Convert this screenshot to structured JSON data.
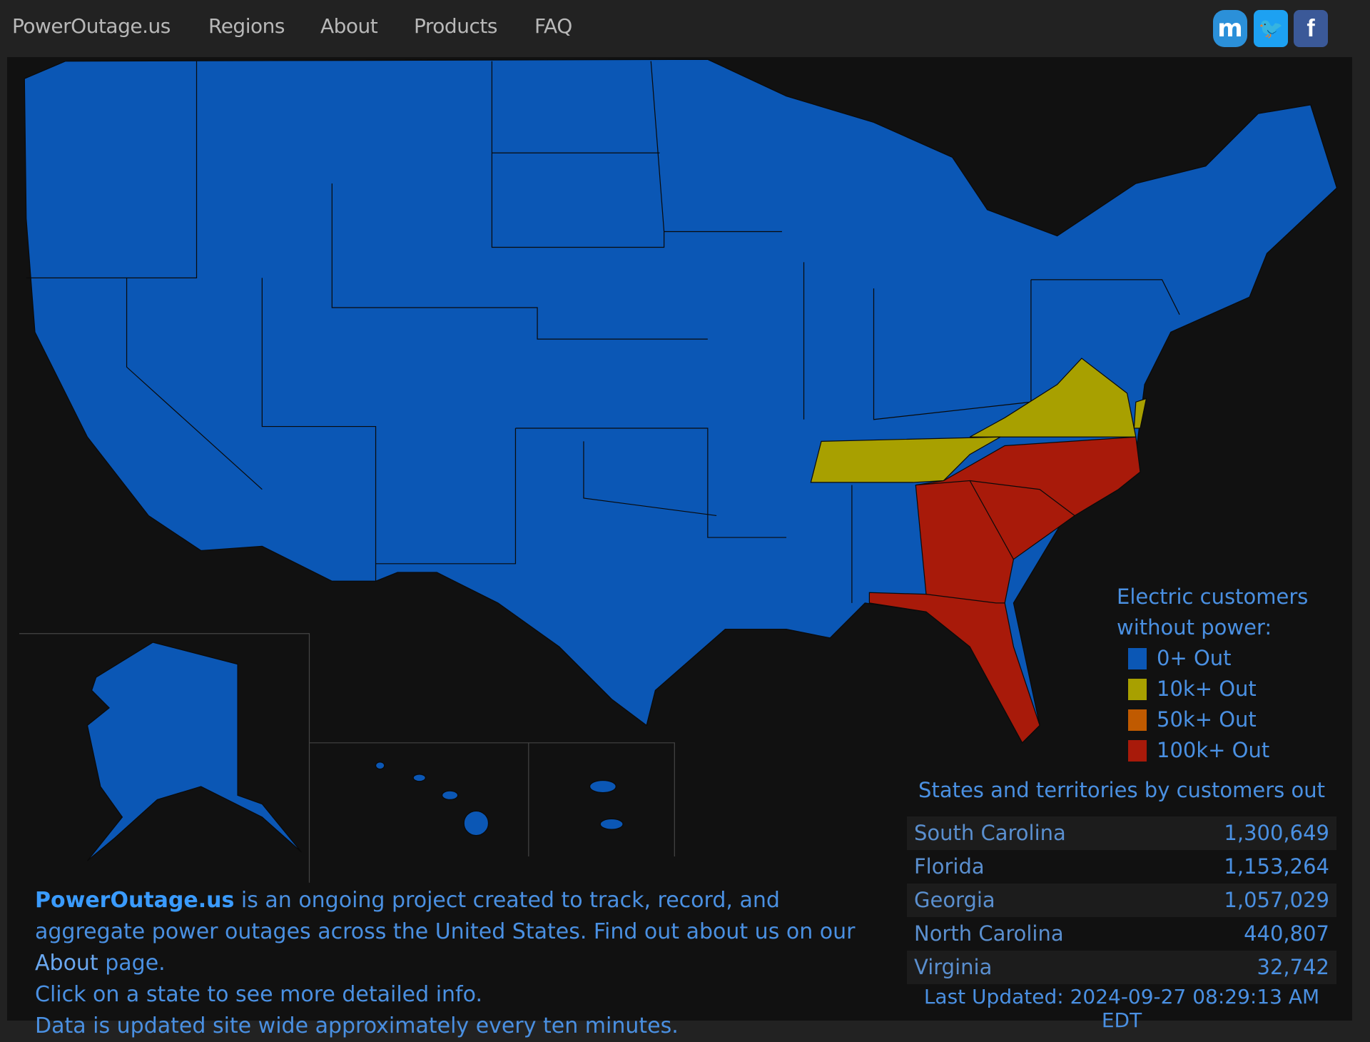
{
  "nav": {
    "items": [
      {
        "label": "PowerOutage.us"
      },
      {
        "label": "Regions"
      },
      {
        "label": "About"
      },
      {
        "label": "Products"
      },
      {
        "label": "FAQ"
      }
    ],
    "social": [
      {
        "icon": "mastodon-icon",
        "glyph": "m",
        "color": "#2b90d9"
      },
      {
        "icon": "twitter-icon",
        "glyph": "🐦",
        "color": "#1da1f2"
      },
      {
        "icon": "facebook-icon",
        "glyph": "f",
        "color": "#3b5998"
      }
    ]
  },
  "map": {
    "colors": {
      "base": "#0b57b5",
      "10k": "#a8a000",
      "50k": "#c05a00",
      "100k": "#a81a0a",
      "border": "#0a0a0a"
    },
    "states_10k": [
      "Tennessee",
      "Virginia"
    ],
    "states_100k": [
      "North Carolina",
      "South Carolina",
      "Georgia",
      "Florida"
    ]
  },
  "legend": {
    "title_line1": "Electric customers",
    "title_line2": "without power:",
    "items": [
      {
        "label": "0+ Out",
        "color": "#0b57b5"
      },
      {
        "label": "10k+ Out",
        "color": "#a8a000"
      },
      {
        "label": "50k+ Out",
        "color": "#c05a00"
      },
      {
        "label": "100k+ Out",
        "color": "#a81a0a"
      }
    ]
  },
  "about": {
    "brand": "PowerOutage.us",
    "text1": " is an ongoing project created to track, record, and aggregate power outages across the United States. Find out about us on our ",
    "about_link": "About",
    "text2": " page.",
    "line3": "Click on a state to see more detailed info.",
    "line4": "Data is updated site wide approximately every ten minutes."
  },
  "table": {
    "title": "States and territories by customers out",
    "rows": [
      {
        "state": "South Carolina",
        "out": "1,300,649"
      },
      {
        "state": "Florida",
        "out": "1,153,264"
      },
      {
        "state": "Georgia",
        "out": "1,057,029"
      },
      {
        "state": "North Carolina",
        "out": "440,807"
      },
      {
        "state": "Virginia",
        "out": "32,742"
      }
    ],
    "last_updated": "Last Updated: 2024-09-27 08:29:13 AM EDT"
  }
}
